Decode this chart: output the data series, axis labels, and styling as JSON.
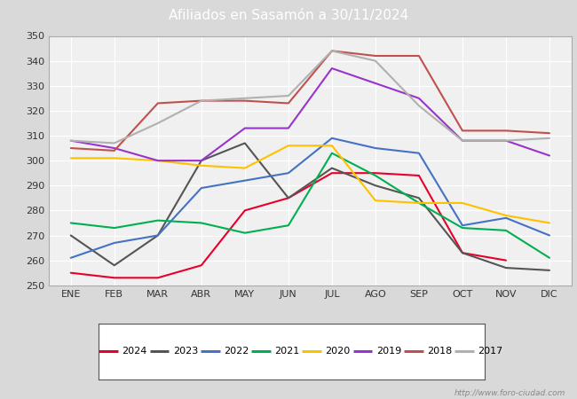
{
  "title": "Afiliados en Sasamón a 30/11/2024",
  "title_color": "#ffffff",
  "title_bg_color": "#4d86c8",
  "fig_bg_color": "#d9d9d9",
  "plot_bg_color": "#f0f0f0",
  "ylim": [
    250,
    350
  ],
  "yticks": [
    250,
    260,
    270,
    280,
    290,
    300,
    310,
    320,
    330,
    340,
    350
  ],
  "months": [
    "ENE",
    "FEB",
    "MAR",
    "ABR",
    "MAY",
    "JUN",
    "JUL",
    "AGO",
    "SEP",
    "OCT",
    "NOV",
    "DIC"
  ],
  "series": {
    "2024": {
      "color": "#e8002a",
      "data": [
        255,
        253,
        253,
        258,
        280,
        285,
        295,
        295,
        294,
        263,
        260,
        null
      ]
    },
    "2023": {
      "color": "#555555",
      "data": [
        270,
        258,
        270,
        300,
        307,
        285,
        297,
        290,
        285,
        263,
        257,
        256
      ]
    },
    "2022": {
      "color": "#4472c4",
      "data": [
        261,
        267,
        270,
        289,
        292,
        295,
        309,
        305,
        303,
        274,
        277,
        270
      ]
    },
    "2021": {
      "color": "#00b050",
      "data": [
        275,
        273,
        276,
        275,
        271,
        274,
        303,
        294,
        283,
        273,
        272,
        261
      ]
    },
    "2020": {
      "color": "#ffc000",
      "data": [
        301,
        301,
        300,
        298,
        297,
        306,
        306,
        284,
        283,
        283,
        278,
        275
      ]
    },
    "2019": {
      "color": "#9933cc",
      "data": [
        308,
        305,
        300,
        300,
        313,
        313,
        337,
        331,
        325,
        308,
        308,
        302
      ]
    },
    "2018": {
      "color": "#c0504d",
      "data": [
        305,
        304,
        323,
        324,
        324,
        323,
        344,
        342,
        342,
        312,
        312,
        311
      ]
    },
    "2017": {
      "color": "#b0b0b0",
      "data": [
        308,
        307,
        315,
        324,
        325,
        326,
        344,
        340,
        322,
        308,
        308,
        309
      ]
    }
  },
  "legend_order": [
    "2024",
    "2023",
    "2022",
    "2021",
    "2020",
    "2019",
    "2018",
    "2017"
  ],
  "watermark": "http://www.foro-ciudad.com",
  "title_fontsize": 11,
  "tick_fontsize": 8,
  "legend_fontsize": 8
}
